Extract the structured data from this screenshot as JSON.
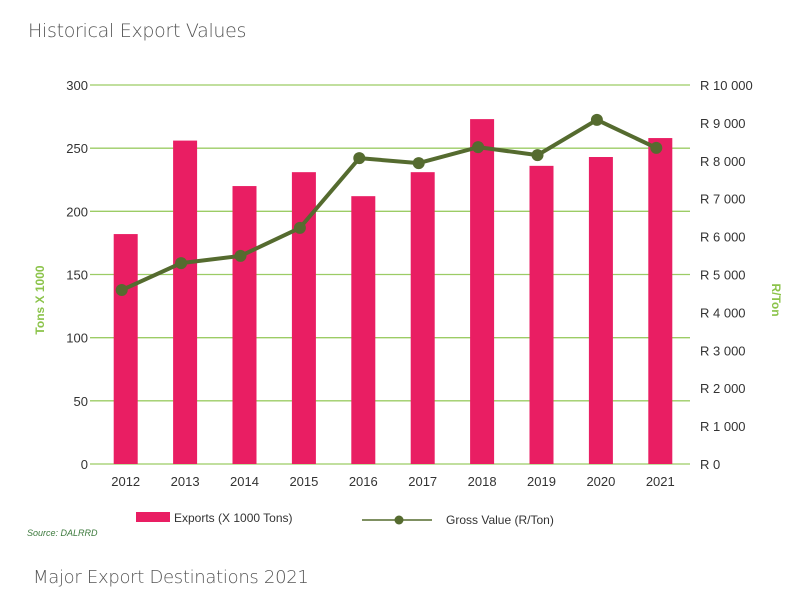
{
  "header": {
    "title": "Historical Export Values"
  },
  "footer": {
    "source": "Source:  DALRRD",
    "next_section_title": "Major Export Destinations 2021"
  },
  "colors": {
    "bar": "#e91e63",
    "line": "#556b2f",
    "grid": "#9ccc65",
    "axis_title": "#8bc34a",
    "text": "#333333"
  },
  "chart_data": {
    "type": "bar",
    "title": "Historical Export Values",
    "categories": [
      "2012",
      "2013",
      "2014",
      "2015",
      "2016",
      "2017",
      "2018",
      "2019",
      "2020",
      "2021"
    ],
    "series": [
      {
        "name": "Exports (X 1000 Tons)",
        "type": "bar",
        "axis": "left",
        "values": [
          182,
          256,
          220,
          231,
          212,
          231,
          273,
          236,
          243,
          258
        ]
      },
      {
        "name": "Gross Value (R/Ton)",
        "type": "line",
        "axis": "right",
        "values": [
          4590,
          5300,
          5490,
          6230,
          8070,
          7940,
          8360,
          8150,
          9080,
          8340
        ]
      }
    ],
    "xlabel": "",
    "ylabel": "Tons X 1000",
    "y2label": "R/Ton",
    "ylim": [
      0,
      300
    ],
    "y2lim": [
      0,
      10000
    ],
    "yticks": [
      "0",
      "50",
      "100",
      "150",
      "200",
      "250",
      "300"
    ],
    "y2ticks": [
      "R  0",
      "R  1 000",
      "R  2 000",
      "R  3 000",
      "R  4 000",
      "R  5 000",
      "R  6 000",
      "R  7 000",
      "R  8 000",
      "R  9 000",
      "R  10 000"
    ],
    "grid": true,
    "legend": "bottom",
    "legend_labels": [
      "Exports (X 1000 Tons)",
      "Gross Value (R/Ton)"
    ]
  }
}
